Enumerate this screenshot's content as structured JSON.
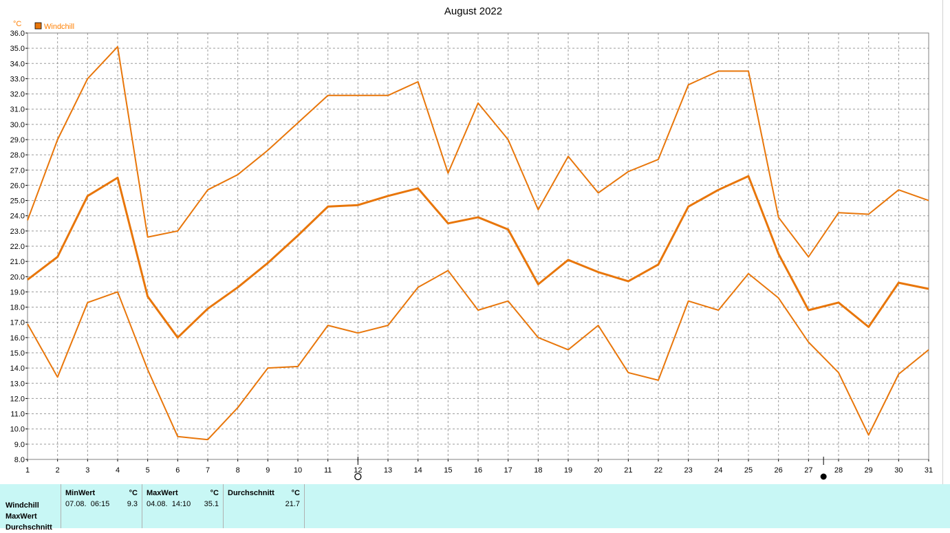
{
  "chart_data": {
    "type": "line",
    "title": "August 2022",
    "ylabel": "°C",
    "legend": {
      "label": "Windchill",
      "color": "#e8760a",
      "placement": "top-left"
    },
    "x": [
      1,
      2,
      3,
      4,
      5,
      6,
      7,
      8,
      9,
      10,
      11,
      12,
      13,
      14,
      15,
      16,
      17,
      18,
      19,
      20,
      21,
      22,
      23,
      24,
      25,
      26,
      27,
      28,
      29,
      30,
      31
    ],
    "xlim": [
      1,
      31
    ],
    "ylim": [
      8.0,
      36.0
    ],
    "y_ticks": [
      "8.0",
      "9.0",
      "10.0",
      "11.0",
      "12.0",
      "13.0",
      "14.0",
      "15.0",
      "16.0",
      "17.0",
      "18.0",
      "19.0",
      "20.0",
      "21.0",
      "22.0",
      "23.0",
      "24.0",
      "25.0",
      "26.0",
      "27.0",
      "28.0",
      "29.0",
      "30.0",
      "31.0",
      "32.0",
      "33.0",
      "34.0",
      "35.0",
      "36.0"
    ],
    "grid": true,
    "series": [
      {
        "role": "max",
        "values": [
          23.7,
          29.0,
          33.0,
          35.1,
          22.6,
          23.0,
          25.7,
          26.7,
          28.3,
          30.1,
          31.9,
          31.9,
          31.9,
          32.8,
          26.8,
          31.4,
          29.0,
          24.4,
          27.9,
          25.5,
          26.9,
          27.7,
          32.6,
          33.5,
          33.5,
          23.9,
          21.3,
          24.2,
          24.1,
          25.7,
          25.0
        ]
      },
      {
        "role": "avg",
        "values": [
          19.8,
          21.3,
          25.3,
          26.5,
          18.7,
          16.0,
          17.9,
          19.3,
          20.9,
          22.7,
          24.6,
          24.7,
          25.3,
          25.8,
          23.5,
          23.9,
          23.1,
          19.5,
          21.1,
          20.3,
          19.7,
          20.8,
          24.6,
          25.7,
          26.6,
          21.5,
          17.8,
          18.3,
          16.7,
          19.6,
          19.2
        ]
      },
      {
        "role": "min",
        "values": [
          16.9,
          13.4,
          18.3,
          19.0,
          13.9,
          9.5,
          9.3,
          11.4,
          14.0,
          14.1,
          16.8,
          16.3,
          16.8,
          19.3,
          20.4,
          17.8,
          18.4,
          16.0,
          15.2,
          16.8,
          13.7,
          13.2,
          18.4,
          17.8,
          20.2,
          18.6,
          15.7,
          13.7,
          9.6,
          13.6,
          15.2
        ]
      }
    ],
    "moon_phases": [
      {
        "day": 12,
        "symbol": "○"
      },
      {
        "day": 27.5,
        "symbol": "●"
      }
    ]
  },
  "stats": {
    "rows": [
      "Windchill",
      "MaxWert",
      "Durchschnitt"
    ],
    "columns": [
      {
        "header": "MinWert",
        "unit": "°C",
        "date": "07.08.  06:15",
        "value": "9.3"
      },
      {
        "header": "MaxWert",
        "unit": "°C",
        "date": "04.08.  14:10",
        "value": "35.1"
      },
      {
        "header": "Durchschnitt",
        "unit": "°C",
        "date": "",
        "value": "21.7"
      }
    ]
  }
}
